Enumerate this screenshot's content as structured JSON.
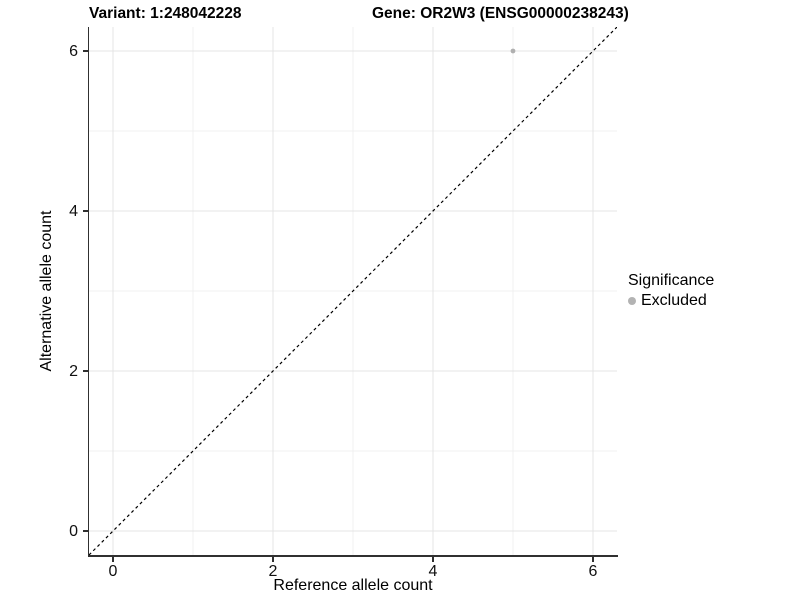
{
  "chart_data": {
    "type": "scatter",
    "title_left": "Variant: 1:248042228",
    "title_right": "Gene: OR2W3 (ENSG00000238243)",
    "xlabel": "Reference allele count",
    "ylabel": "Alternative allele count",
    "xlim": [
      -0.3,
      6.3
    ],
    "ylim": [
      -0.3,
      6.3
    ],
    "x_ticks": [
      0,
      2,
      4,
      6
    ],
    "y_ticks": [
      0,
      2,
      4,
      6
    ],
    "x_minor_ticks": [
      1,
      3,
      5
    ],
    "y_minor_ticks": [
      1,
      3,
      5
    ],
    "grid": true,
    "series": [
      {
        "name": "Excluded",
        "color": "#b0b0b0",
        "marker_radius": 2.4,
        "points": [
          {
            "x": 5,
            "y": 6
          }
        ]
      }
    ],
    "reference_line": {
      "type": "identity",
      "slope": 1,
      "intercept": 0,
      "style": "dashed",
      "color": "#000000"
    },
    "legend": {
      "title": "Significance",
      "position": "right",
      "entries": [
        {
          "label": "Excluded",
          "marker_color": "#b3b3b3"
        }
      ]
    }
  },
  "colors": {
    "background": "#ffffff",
    "grid_major": "#e4e4e4",
    "grid_minor": "#f0f0f0",
    "axis_line": "#303030",
    "text": "#000000"
  }
}
